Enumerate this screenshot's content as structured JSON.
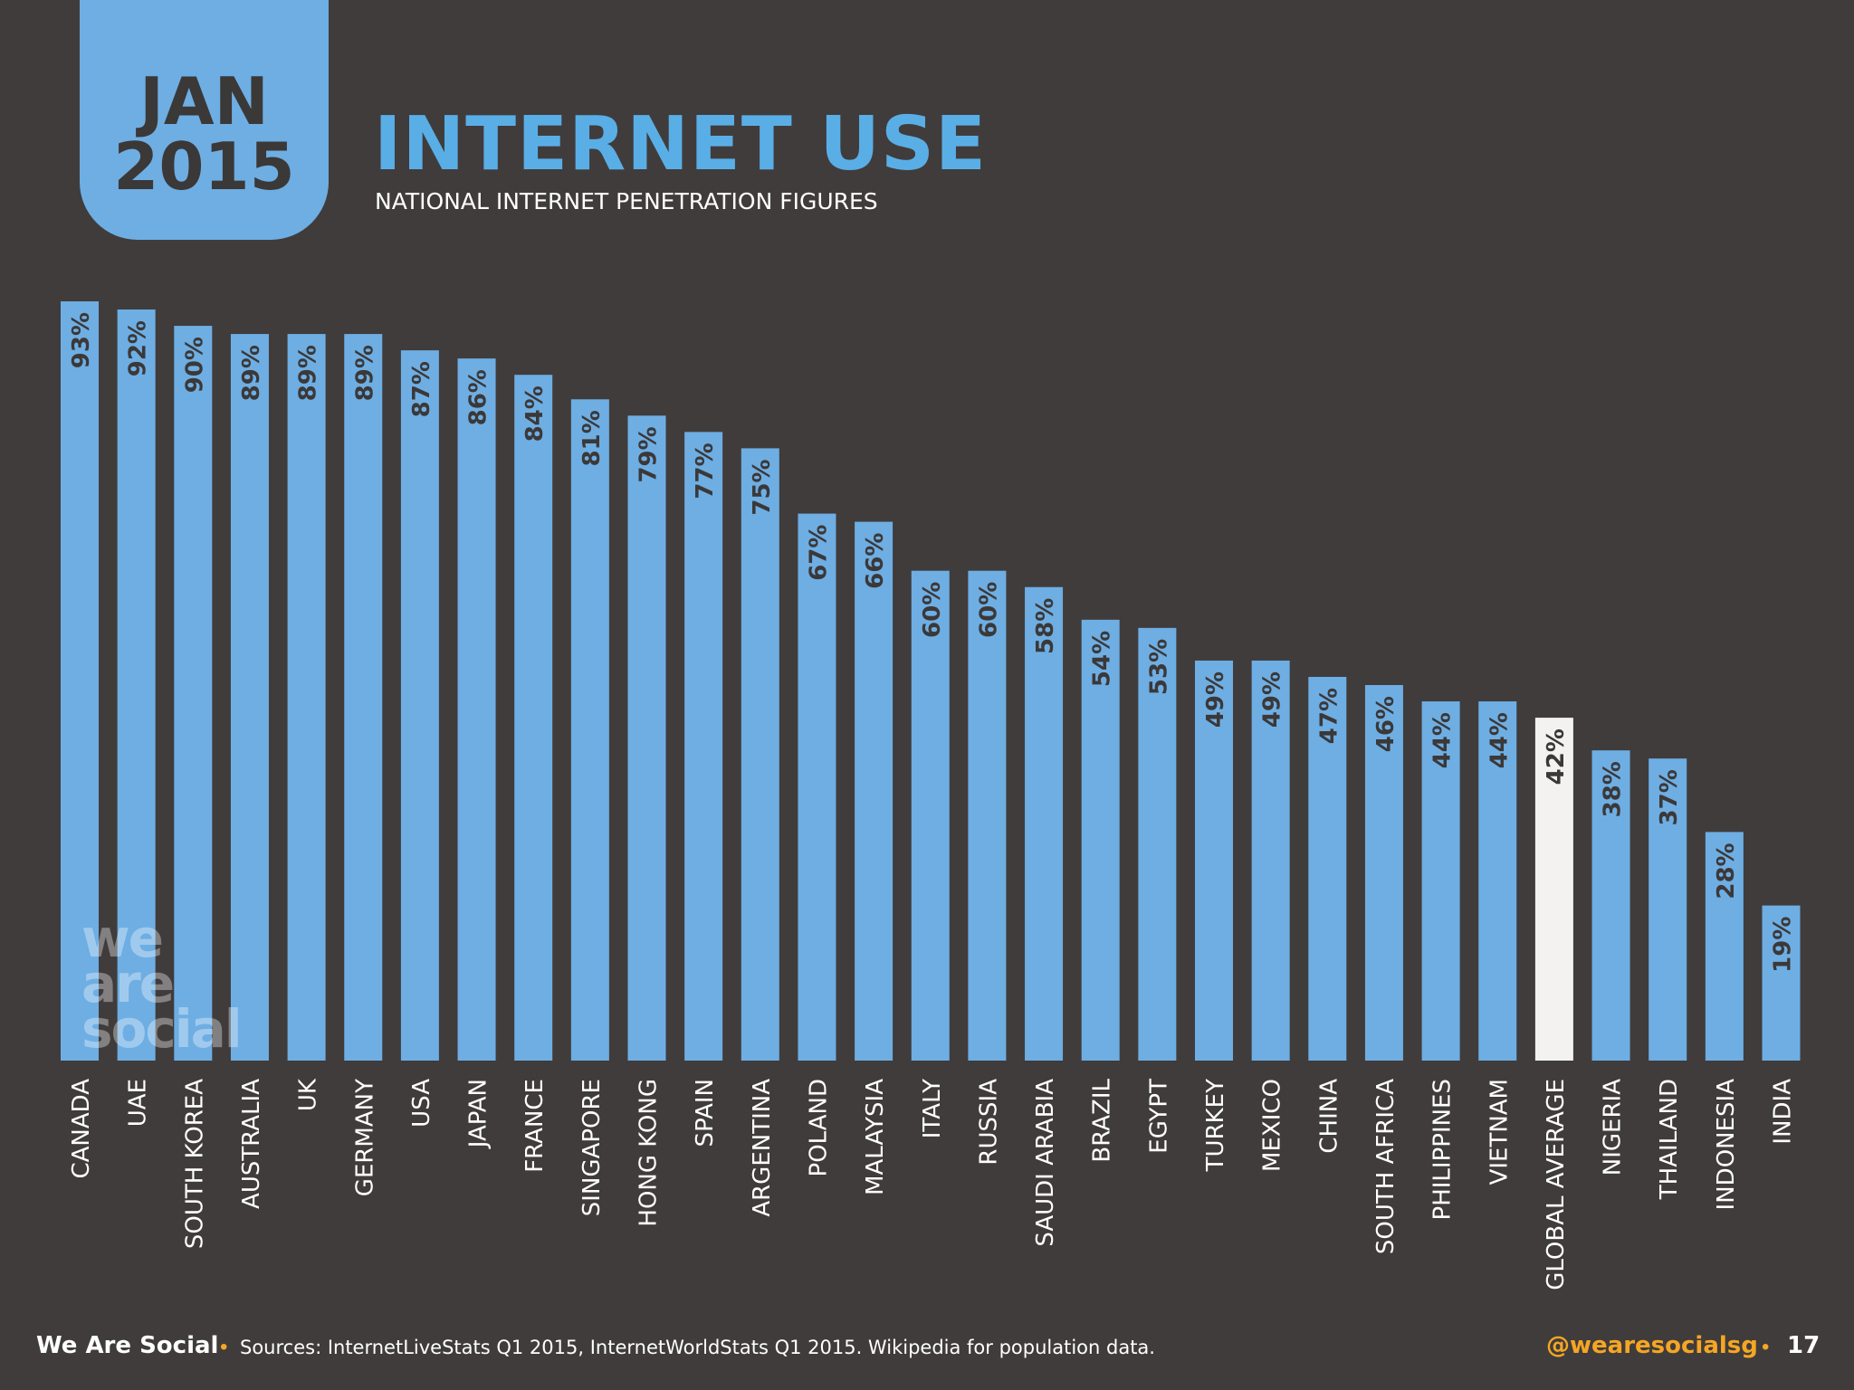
{
  "header": {
    "badge_month": "JAN",
    "badge_year": "2015",
    "title": "INTERNET USE",
    "subtitle": "NATIONAL INTERNET PENETRATION FIGURES"
  },
  "watermark": {
    "line1": "we",
    "line2": "are",
    "line3": "social"
  },
  "footer": {
    "brand": "We Are Social",
    "separator": "•",
    "sources": "Sources: InternetLiveStats Q1 2015, InternetWorldStats Q1 2015. Wikipedia for population data.",
    "handle": "@wearesocialsg",
    "page": "17"
  },
  "colors": {
    "background": "#403c3c",
    "bar": "#6eaee3",
    "highlight_bar": "#f4f2f1",
    "bar_label": "#3b3838",
    "title": "#5aaee6",
    "accent": "#f5a623"
  },
  "chart_data": {
    "type": "bar",
    "title": "INTERNET USE",
    "subtitle": "NATIONAL INTERNET PENETRATION FIGURES",
    "categories": [
      "CANADA",
      "UAE",
      "SOUTH KOREA",
      "AUSTRALIA",
      "UK",
      "GERMANY",
      "USA",
      "JAPAN",
      "FRANCE",
      "SINGAPORE",
      "HONG KONG",
      "SPAIN",
      "ARGENTINA",
      "POLAND",
      "MALAYSIA",
      "ITALY",
      "RUSSIA",
      "SAUDI ARABIA",
      "BRAZIL",
      "EGYPT",
      "TURKEY",
      "MEXICO",
      "CHINA",
      "SOUTH AFRICA",
      "PHILIPPINES",
      "VIETNAM",
      "GLOBAL AVERAGE",
      "NIGERIA",
      "THAILAND",
      "INDONESIA",
      "INDIA"
    ],
    "values": [
      93,
      92,
      90,
      89,
      89,
      89,
      87,
      86,
      84,
      81,
      79,
      77,
      75,
      67,
      66,
      60,
      60,
      58,
      54,
      53,
      49,
      49,
      47,
      46,
      44,
      44,
      42,
      38,
      37,
      28,
      19
    ],
    "value_labels": [
      "93%",
      "92%",
      "90%",
      "89%",
      "89%",
      "89%",
      "87%",
      "86%",
      "84%",
      "81%",
      "79%",
      "77%",
      "75%",
      "67%",
      "66%",
      "60%",
      "60%",
      "58%",
      "54%",
      "53%",
      "49%",
      "49%",
      "47%",
      "46%",
      "44%",
      "44%",
      "42%",
      "38%",
      "37%",
      "28%",
      "19%"
    ],
    "highlight_category": "GLOBAL AVERAGE",
    "unit": "%",
    "ylim": [
      0,
      93
    ],
    "grid": false,
    "legend": "none",
    "xlabel": "",
    "ylabel": ""
  }
}
